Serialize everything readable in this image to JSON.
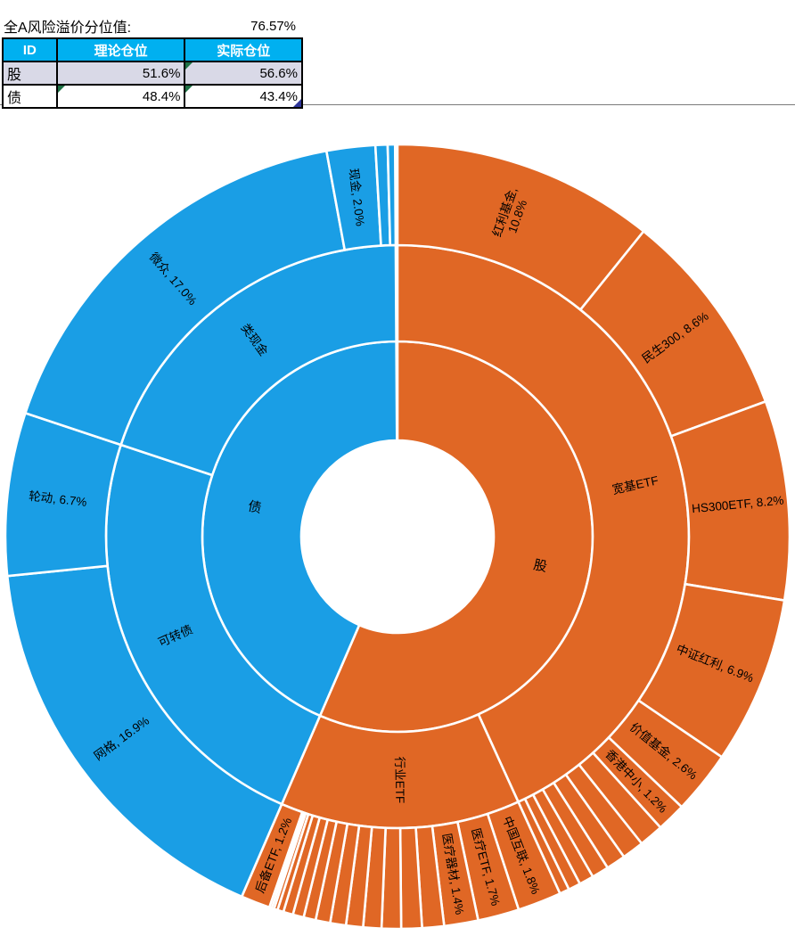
{
  "header": {
    "premium_label": "全A风险溢价分位值:",
    "premium_value": "76.57%"
  },
  "table": {
    "columns": [
      "ID",
      "理论仓位",
      "实际仓位"
    ],
    "rows": [
      {
        "id": "股",
        "theory": "51.6%",
        "actual": "56.6%"
      },
      {
        "id": "债",
        "theory": "48.4%",
        "actual": "43.4%"
      }
    ],
    "colors": {
      "header_bg": "#00B0F0",
      "row_shaded_bg": "#D9D9E7",
      "flag_green": "#1E7145",
      "corner_blue": "#2F3699"
    }
  },
  "chart_data": {
    "type": "sunburst",
    "start_angle_deg": 0,
    "direction": "clockwise",
    "unit": "percent_of_total",
    "legend": "none",
    "ring_levels": [
      "资产",
      "类别",
      "品种"
    ],
    "colors": {
      "stock": "#E06725",
      "bond": "#1A9EE5",
      "separator": "#FFFFFF"
    },
    "tree": [
      {
        "name": "股",
        "label": "股",
        "color": "#E06725",
        "children": [
          {
            "name": "宽基ETF",
            "label": "宽基ETF",
            "children": [
              {
                "name": "红利基金",
                "value": 10.8,
                "label": "红利基金,\n10.8%"
              },
              {
                "name": "民生300",
                "value": 8.6,
                "label": "民生300, 8.6%"
              },
              {
                "name": "HS300ETF",
                "value": 8.2,
                "label": "HS300ETF, 8.2%"
              },
              {
                "name": "中证红利",
                "value": 6.9,
                "label": "中证红利, 6.9%"
              },
              {
                "name": "价值基金",
                "value": 2.6,
                "label": "价值基金, 2.6%"
              },
              {
                "name": "香港中小",
                "value": 1.2,
                "label": "香港中小, 1.2%"
              },
              {
                "value": 1.0
              },
              {
                "value": 0.9
              },
              {
                "value": 0.8
              },
              {
                "value": 0.7
              },
              {
                "value": 0.6
              },
              {
                "value": 0.5
              },
              {
                "value": 0.4
              }
            ]
          },
          {
            "name": "行业ETF",
            "label": "行业ETF",
            "children": [
              {
                "name": "中国互联",
                "value": 1.8,
                "label": "中国互联, 1.8%"
              },
              {
                "name": "医疗ETF",
                "value": 1.7,
                "label": "医疗ETF, 1.7%"
              },
              {
                "name": "医疗器材",
                "value": 1.4,
                "label": "医疗器材, 1.4%"
              },
              {
                "value": 0.9
              },
              {
                "value": 0.85
              },
              {
                "value": 0.8
              },
              {
                "value": 0.75
              },
              {
                "value": 0.7
              },
              {
                "value": 0.65
              },
              {
                "value": 0.6
              },
              {
                "value": 0.5
              },
              {
                "value": 0.45
              },
              {
                "value": 0.4
              },
              {
                "value": 0.25
              },
              {
                "value": 0.15
              },
              {
                "value": 0.1
              },
              {
                "value": 0.1
              },
              {
                "name": "后备ETF",
                "value": 1.2,
                "label": "后备ETF, 1.2%"
              }
            ]
          }
        ]
      },
      {
        "name": "债",
        "label": "债",
        "color": "#1A9EE5",
        "children": [
          {
            "name": "可转债",
            "label": "可转债",
            "children": [
              {
                "name": "网格",
                "value": 16.9,
                "label": "网格, 16.9%"
              },
              {
                "name": "轮动",
                "value": 6.7,
                "label": "轮动, 6.7%"
              }
            ]
          },
          {
            "name": "类现金",
            "label": "类现金",
            "children": [
              {
                "name": "微众",
                "value": 17.0,
                "label": "微众, 17.0%"
              },
              {
                "name": "现金",
                "value": 2.0,
                "label": "现金, 2.0%"
              },
              {
                "value": 0.5
              },
              {
                "value": 0.3
              }
            ]
          }
        ]
      }
    ]
  }
}
